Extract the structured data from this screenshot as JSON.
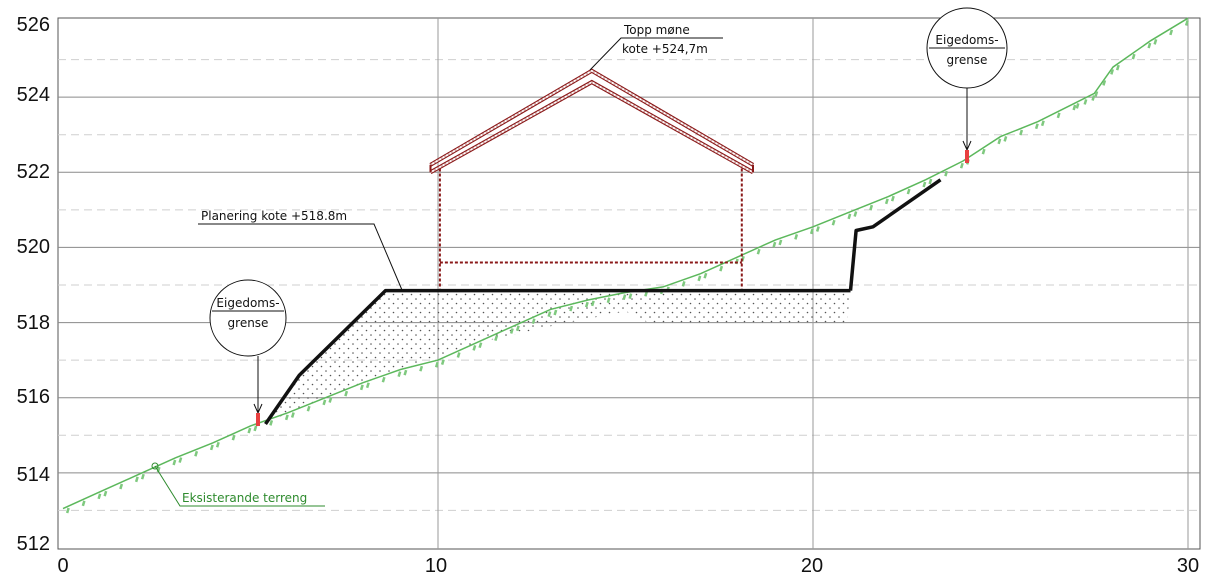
{
  "chart_data": {
    "type": "line",
    "xlim": [
      0,
      30
    ],
    "ylim": [
      512,
      526
    ],
    "x_ticks": [
      "0",
      "10",
      "20",
      "30"
    ],
    "y_ticks": [
      "512",
      "514",
      "516",
      "518",
      "520",
      "522",
      "524",
      "526"
    ],
    "grid": true,
    "colors": {
      "terrain": "#5cb85c",
      "terrain_ticks": "#7fc97f",
      "profile": "#111111",
      "building": "#8b1a1a",
      "boundary_marker": "#e84040"
    },
    "series": [
      {
        "name": "Eksisterande terreng",
        "x": [
          0,
          1,
          2,
          3,
          4,
          5,
          6,
          7,
          8,
          9,
          10,
          11,
          12,
          13,
          14,
          15,
          16,
          17,
          18,
          19,
          20,
          21,
          22,
          23,
          24,
          25,
          26,
          27,
          27.5,
          28,
          29,
          30
        ],
        "y": [
          513.05,
          513.5,
          513.95,
          514.4,
          514.8,
          515.25,
          515.6,
          516.0,
          516.4,
          516.75,
          517.0,
          517.45,
          517.9,
          518.35,
          518.6,
          518.8,
          518.95,
          519.3,
          519.75,
          520.2,
          520.55,
          520.95,
          521.35,
          521.8,
          522.3,
          522.95,
          523.35,
          523.85,
          524.1,
          524.8,
          525.5,
          526.1
        ]
      },
      {
        "name": "",
        "x": [
          5.4,
          6.3,
          8.6,
          15.6,
          21.0,
          21.15,
          21.6,
          23.4
        ],
        "y": [
          515.3,
          516.6,
          518.85,
          518.85,
          518.85,
          520.45,
          520.55,
          521.8
        ]
      }
    ],
    "fill_region": {
      "x": [
        5.4,
        6.3,
        8.6,
        21.0,
        20.9,
        15.6,
        15.0,
        13.0,
        11.0,
        9.0,
        7.0,
        6.0,
        5.4
      ],
      "y": [
        515.3,
        516.6,
        518.85,
        518.85,
        518.0,
        518.0,
        518.3,
        517.9,
        517.45,
        516.75,
        516.0,
        515.6,
        515.3
      ]
    },
    "building": {
      "roof_outer": {
        "x": [
          9.8,
          14.1,
          18.4
        ],
        "y": [
          522.2,
          524.7,
          522.2
        ]
      },
      "roof_inner": {
        "x": [
          9.8,
          14.1,
          18.4
        ],
        "y": [
          522.0,
          524.4,
          522.0
        ]
      },
      "left_wall": {
        "x": [
          10.05,
          10.05
        ],
        "y": [
          522.1,
          518.9
        ]
      },
      "right_wall": {
        "x": [
          18.1,
          18.1
        ],
        "y": [
          522.1,
          518.9
        ]
      },
      "floor": {
        "x": [
          10.05,
          18.1
        ],
        "y": [
          519.6,
          519.6
        ]
      }
    },
    "annotations": [
      {
        "lines": [
          "Topp møne",
          "kote +524,7m"
        ],
        "points_to": [
          14.05,
          524.7
        ]
      },
      {
        "lines": [
          "Planering kote +518.8m"
        ],
        "points_to": [
          9.0,
          518.8
        ]
      },
      {
        "lines": [
          "Eksisterande terreng"
        ],
        "points_to": [
          2.45,
          514.15
        ]
      },
      {
        "lines": [
          "Eigedoms-",
          "grense"
        ],
        "points_to": [
          5.2,
          515.3
        ]
      },
      {
        "lines": [
          "Eigedoms-",
          "grense"
        ],
        "points_to": [
          24.05,
          522.3
        ]
      }
    ]
  }
}
